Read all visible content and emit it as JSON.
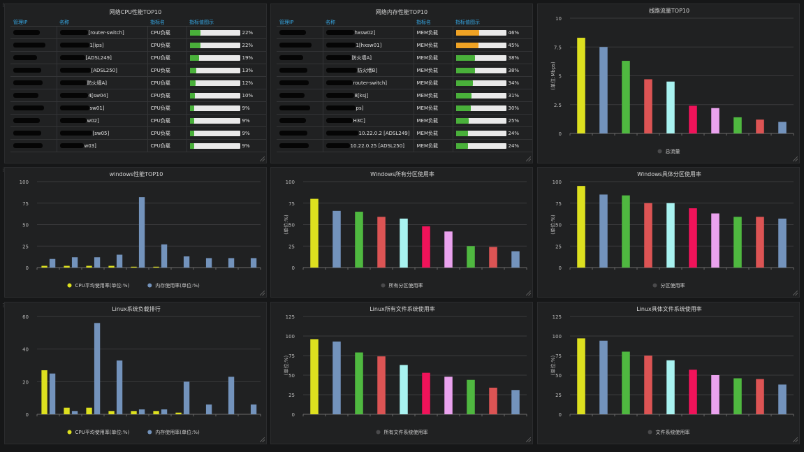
{
  "colors": {
    "c1": "#dde01f",
    "c2": "#7393bc",
    "c3": "#4fb840",
    "c4": "#dc5454",
    "c5": "#a8f2f0",
    "c6": "#f0135a",
    "c7": "#eaa2ee",
    "grid": "#3a3a3c",
    "green": "#49b03a",
    "orange": "#f0a324"
  },
  "cpu_table": {
    "title": "网络CPU性能TOP10",
    "headers": [
      "管理IP",
      "名称",
      "指标名",
      "指标值图示"
    ],
    "rows": [
      {
        "name": "[router-switch]",
        "metric": "CPU负载",
        "value": "22%",
        "pct": 22
      },
      {
        "name": "1[ips]",
        "metric": "CPU负载",
        "value": "22%",
        "pct": 22
      },
      {
        "name": "[ADSL249]",
        "metric": "CPU负载",
        "value": "19%",
        "pct": 19
      },
      {
        "name": "[ADSL250]",
        "metric": "CPU负载",
        "value": "13%",
        "pct": 13
      },
      {
        "name": "防火墙A]",
        "metric": "CPU负载",
        "value": "12%",
        "pct": 12
      },
      {
        "name": "4[sw04]",
        "metric": "CPU负载",
        "value": "10%",
        "pct": 10
      },
      {
        "name": "sw01]",
        "metric": "CPU负载",
        "value": "9%",
        "pct": 9
      },
      {
        "name": "w02]",
        "metric": "CPU负载",
        "value": "9%",
        "pct": 9
      },
      {
        "name": "[sw05]",
        "metric": "CPU负载",
        "value": "9%",
        "pct": 9
      },
      {
        "name": "w03]",
        "metric": "CPU负载",
        "value": "9%",
        "pct": 9
      }
    ]
  },
  "mem_table": {
    "title": "网络内存性能TOP10",
    "headers": [
      "管理IP",
      "名称",
      "指标名",
      "指标值图示"
    ],
    "rows": [
      {
        "name": "hxsw02]",
        "metric": "MEM负载",
        "value": "46%",
        "pct": 46
      },
      {
        "name": "1[hxsw01]",
        "metric": "MEM负载",
        "value": "45%",
        "pct": 45
      },
      {
        "name": "防火墙A]",
        "metric": "MEM负载",
        "value": "38%",
        "pct": 38
      },
      {
        "name": "防火墙B]",
        "metric": "MEM负载",
        "value": "38%",
        "pct": 38
      },
      {
        "name": "router-switch]",
        "metric": "MEM负载",
        "value": "34%",
        "pct": 34
      },
      {
        "name": "8[ksj]",
        "metric": "MEM负载",
        "value": "31%",
        "pct": 31
      },
      {
        "name": "ps]",
        "metric": "MEM负载",
        "value": "30%",
        "pct": 30
      },
      {
        "name": "H3C]",
        "metric": "MEM负载",
        "value": "25%",
        "pct": 25
      },
      {
        "name": "10.22.0.2 [ADSL249]",
        "metric": "MEM负载",
        "value": "24%",
        "pct": 24
      },
      {
        "name": "10.22.0.25 [ADSL250]",
        "metric": "MEM负载",
        "value": "24%",
        "pct": 24
      }
    ]
  },
  "chart_data": [
    {
      "id": "link-traffic",
      "type": "bar",
      "title": "线路流量TOP10",
      "ylabel": "(单位:Mbps)",
      "ylim": [
        0,
        10
      ],
      "ticks": [
        0,
        2.5,
        5,
        7.5,
        10
      ],
      "series": [
        {
          "name": "总流量",
          "values": [
            8.3,
            7.5,
            6.3,
            4.7,
            4.5,
            2.4,
            2.2,
            1.4,
            1.2,
            1.0
          ]
        }
      ],
      "per_bar_colors": true
    },
    {
      "id": "windows-perf",
      "type": "bar",
      "title": "windows性能TOP10",
      "ylabel": "",
      "ylim": [
        0,
        100
      ],
      "ticks": [
        0,
        25,
        50,
        75,
        100
      ],
      "series": [
        {
          "name": "CPU平均使用率(单位:%)",
          "values": [
            2,
            2,
            2,
            2,
            1,
            1,
            0,
            0,
            0,
            0
          ]
        },
        {
          "name": "内存使用率(单位:%)",
          "values": [
            10,
            12,
            12,
            15,
            82,
            27,
            13,
            11,
            11,
            11
          ]
        }
      ]
    },
    {
      "id": "windows-all-partitions",
      "type": "bar",
      "title": "Windows所有分区使用率",
      "ylabel": "(单位:%)",
      "ylim": [
        0,
        100
      ],
      "ticks": [
        0,
        25,
        50,
        75,
        100
      ],
      "series": [
        {
          "name": "所有分区使用率",
          "values": [
            80,
            66,
            65,
            59,
            57,
            48,
            42,
            25,
            24,
            19
          ]
        }
      ],
      "per_bar_colors": true
    },
    {
      "id": "windows-partition",
      "type": "bar",
      "title": "Windows具体分区使用率",
      "ylabel": "(单位:%)",
      "ylim": [
        0,
        100
      ],
      "ticks": [
        0,
        25,
        50,
        75,
        100
      ],
      "series": [
        {
          "name": "分区使用率",
          "values": [
            95,
            85,
            84,
            75,
            75,
            69,
            63,
            59,
            59,
            57
          ]
        }
      ],
      "per_bar_colors": true
    },
    {
      "id": "linux-load",
      "type": "bar",
      "title": "Linux系统负载排行",
      "ylabel": "",
      "ylim": [
        0,
        60
      ],
      "ticks": [
        0,
        20,
        40,
        60
      ],
      "series": [
        {
          "name": "CPU平均使用率(单位:%)",
          "values": [
            27,
            4,
            4,
            2,
            2,
            2,
            1,
            0,
            0,
            0
          ]
        },
        {
          "name": "内存使用率(单位:%)",
          "values": [
            25,
            2,
            56,
            33,
            3,
            3,
            20,
            6,
            23,
            6
          ]
        }
      ]
    },
    {
      "id": "linux-all-fs",
      "type": "bar",
      "title": "Linux所有文件系统使用率",
      "ylabel": "(单位:%)",
      "ylim": [
        0,
        125
      ],
      "ticks": [
        0,
        25,
        50,
        75,
        100,
        125
      ],
      "series": [
        {
          "name": "所有文件系统使用率",
          "values": [
            96,
            93,
            79,
            74,
            63,
            53,
            48,
            44,
            34,
            31
          ]
        }
      ],
      "per_bar_colors": true
    },
    {
      "id": "linux-fs",
      "type": "bar",
      "title": "Linux具体文件系统使用率",
      "ylabel": "(单位:%)",
      "ylim": [
        0,
        125
      ],
      "ticks": [
        0,
        25,
        50,
        75,
        100,
        125
      ],
      "series": [
        {
          "name": "文件系统使用率",
          "values": [
            97,
            94,
            80,
            75,
            69,
            57,
            50,
            46,
            45,
            38
          ]
        }
      ],
      "per_bar_colors": true
    }
  ]
}
